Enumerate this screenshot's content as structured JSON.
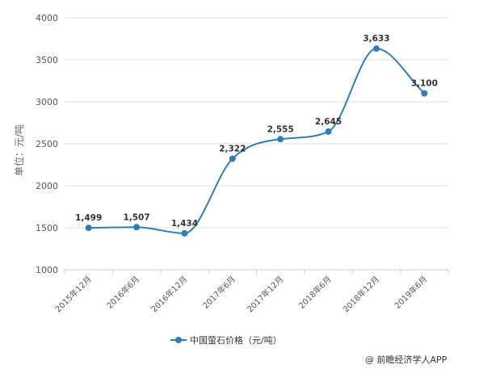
{
  "chart_data": {
    "type": "line",
    "title": "",
    "xlabel": "",
    "ylabel": "单位：元/吨",
    "categories": [
      "2015年12月",
      "2016年6月",
      "2016年12月",
      "2017年6月",
      "2017年12月",
      "2018年6月",
      "2018年12月",
      "2019年6月"
    ],
    "series": [
      {
        "name": "中国萤石价格（元/吨）",
        "values": [
          1499,
          1507,
          1434,
          2322,
          2555,
          2645,
          3633,
          3100
        ],
        "data_labels": [
          "1,499",
          "1,507",
          "1,434",
          "2,322",
          "2,555",
          "2,645",
          "3,633",
          "3,100"
        ],
        "color": "#2e7db8"
      }
    ],
    "ylim": [
      1000,
      4000
    ],
    "yticks": [
      1000,
      1500,
      2000,
      2500,
      3000,
      3500,
      4000
    ],
    "grid": true,
    "smooth": true,
    "legend_position": "bottom"
  },
  "source": "@ 前瞻经济学人APP",
  "colors": {
    "series": "#2e7db8",
    "grid": "#dddddd",
    "axis": "#cccccc"
  }
}
